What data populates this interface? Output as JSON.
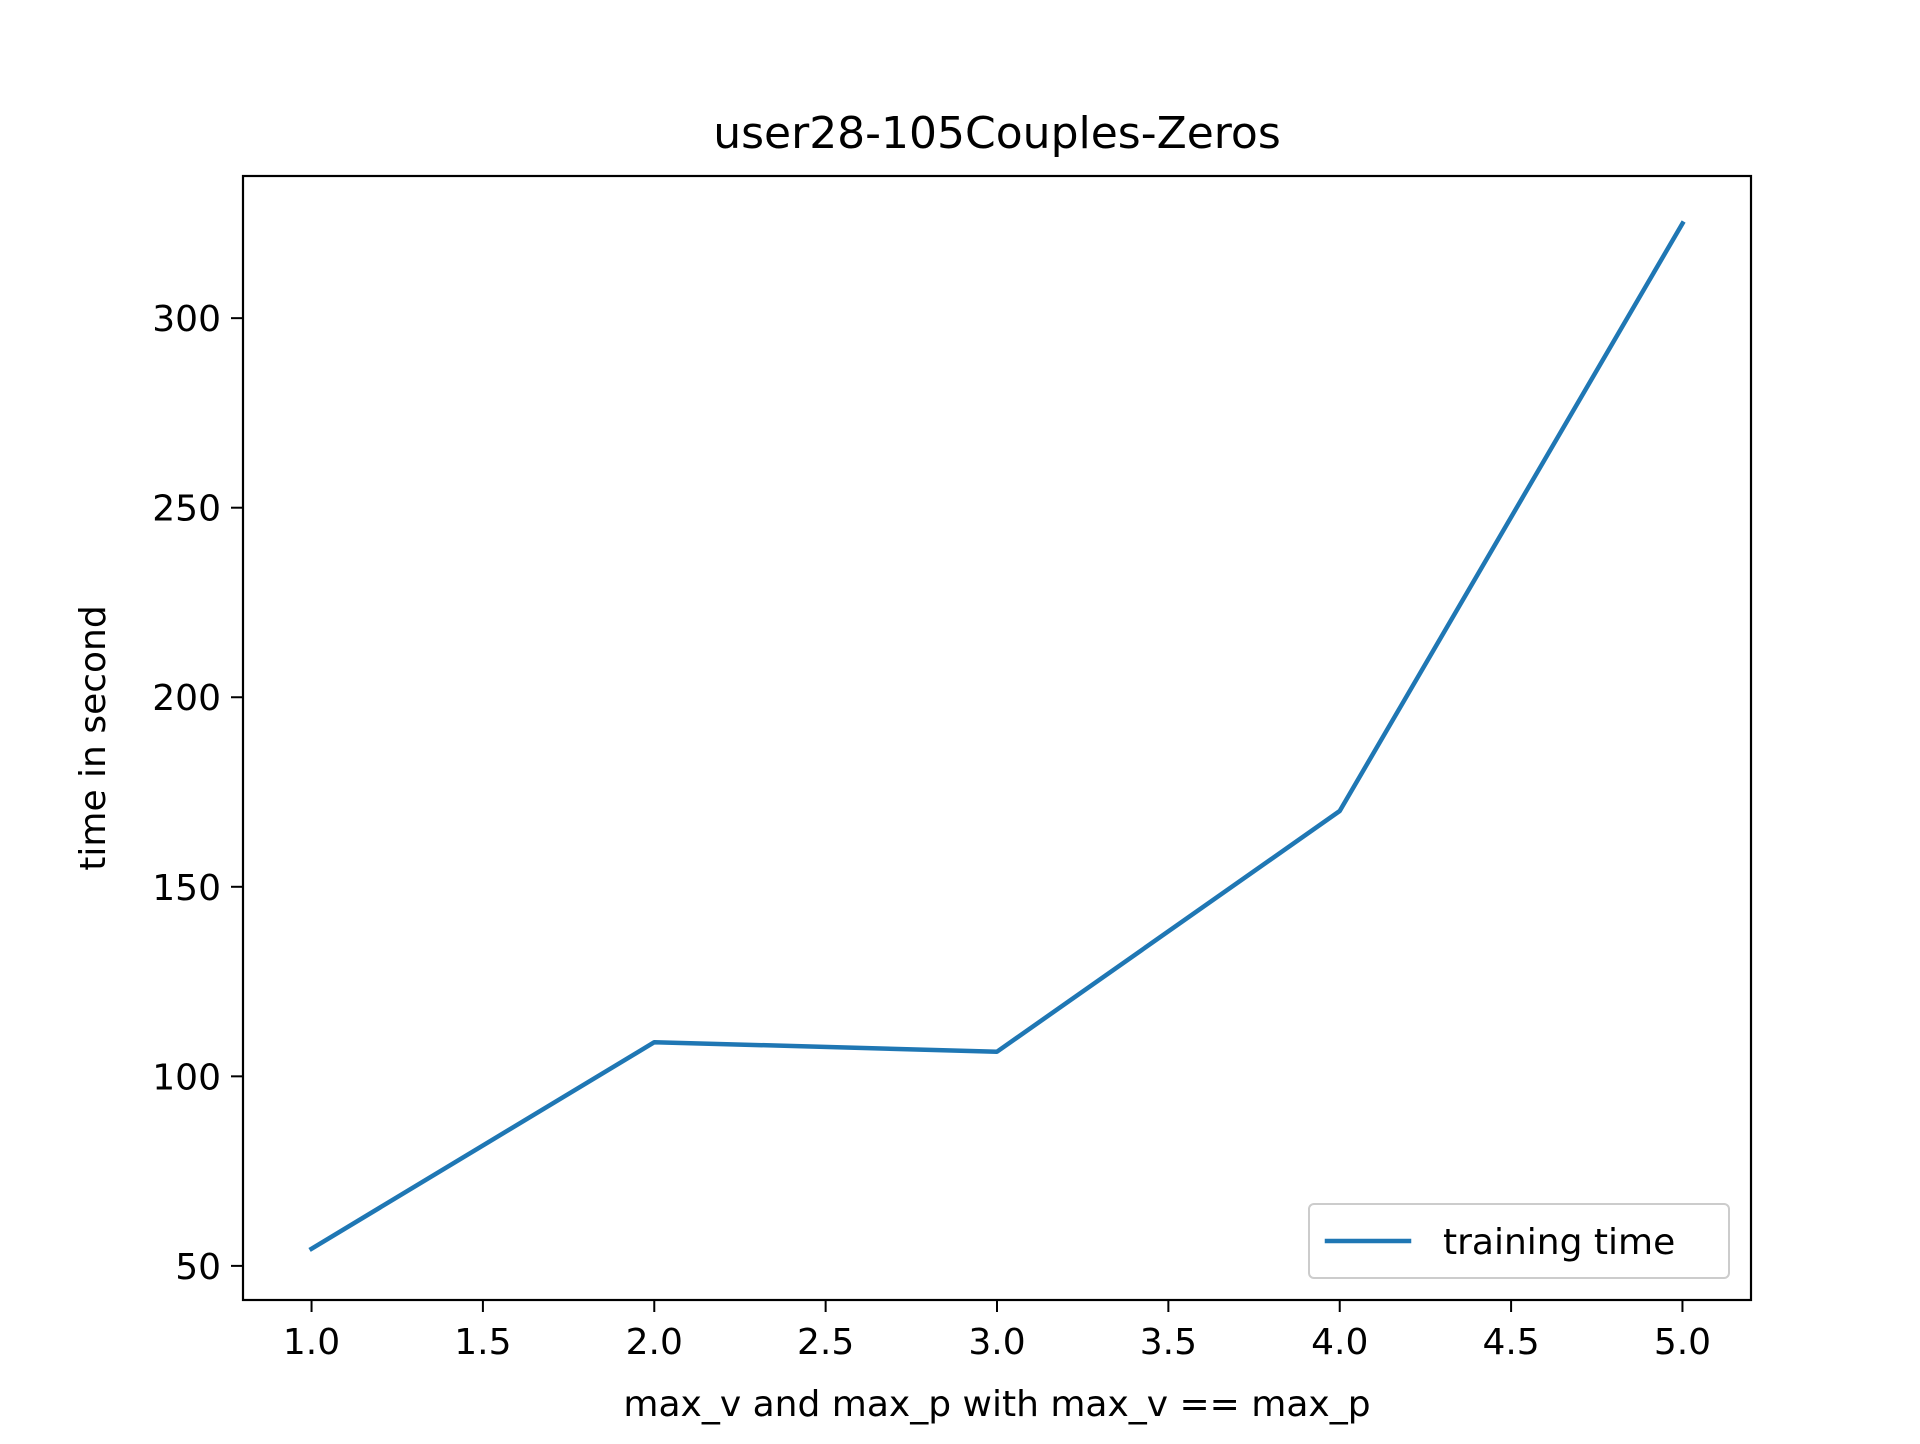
{
  "chart_data": {
    "type": "line",
    "title": "user28-105Couples-Zeros",
    "xlabel": "max_v and max_p with max_v == max_p",
    "ylabel": "time in second",
    "x": [
      1.0,
      2.0,
      3.0,
      4.0,
      5.0
    ],
    "series": [
      {
        "name": "training time",
        "color": "#1f77b4",
        "values": [
          54.5,
          109,
          106.5,
          170,
          325
        ]
      }
    ],
    "xlim": [
      0.8,
      5.2
    ],
    "ylim": [
      41,
      337.5
    ],
    "x_ticks": [
      1.0,
      1.5,
      2.0,
      2.5,
      3.0,
      3.5,
      4.0,
      4.5,
      5.0
    ],
    "x_tick_labels": [
      "1.0",
      "1.5",
      "2.0",
      "2.5",
      "3.0",
      "3.5",
      "4.0",
      "4.5",
      "5.0"
    ],
    "y_ticks": [
      50,
      100,
      150,
      200,
      250,
      300
    ],
    "y_tick_labels": [
      "50",
      "100",
      "150",
      "200",
      "250",
      "300"
    ],
    "grid": false,
    "legend_position": "lower-right"
  }
}
